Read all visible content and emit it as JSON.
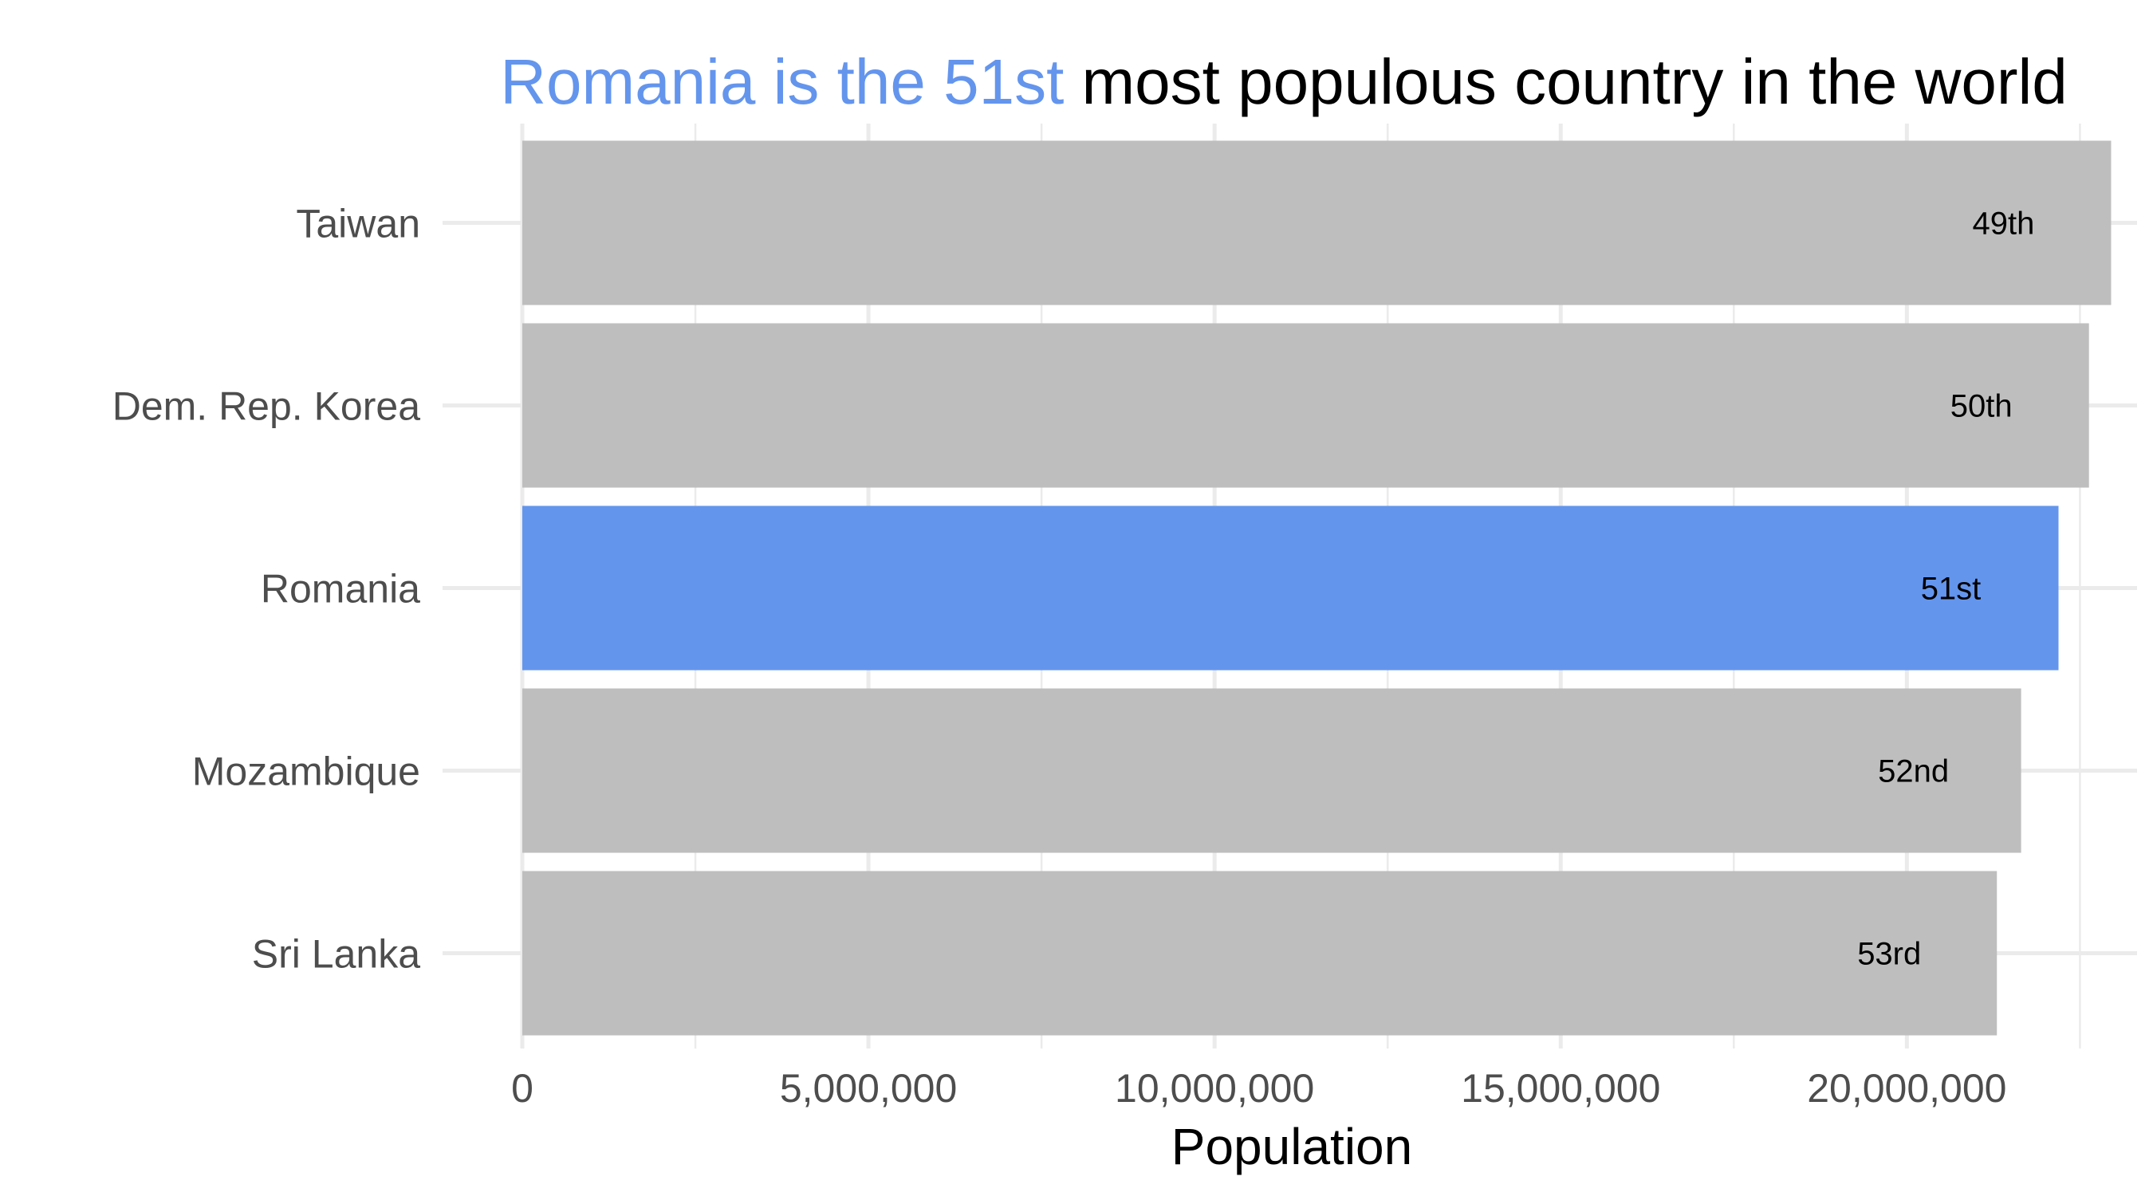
{
  "chart_data": {
    "type": "bar",
    "orientation": "horizontal",
    "title": {
      "highlight": "Romania is the 51st",
      "rest": " most populous country in the world"
    },
    "xlabel": "Population",
    "ylabel": "",
    "xlim": [
      0,
      23000000
    ],
    "xticks": [
      0,
      5000000,
      10000000,
      15000000,
      20000000
    ],
    "xtick_labels": [
      "0",
      "5,000,000",
      "10,000,000",
      "15,000,000",
      "20,000,000"
    ],
    "categories": [
      "Taiwan",
      "Dem. Rep. Korea",
      "Romania",
      "Mozambique",
      "Sri Lanka"
    ],
    "values": [
      22950000,
      22630000,
      22190000,
      21650000,
      21300000
    ],
    "rank_labels": [
      "49th",
      "50th",
      "51st",
      "52nd",
      "53rd"
    ],
    "highlight_index": 2,
    "grid": true,
    "legend": "none",
    "colors": {
      "default_bar": "#BEBEBE",
      "highlight_bar": "#6495ED",
      "grid": "#EBEBEB"
    }
  }
}
